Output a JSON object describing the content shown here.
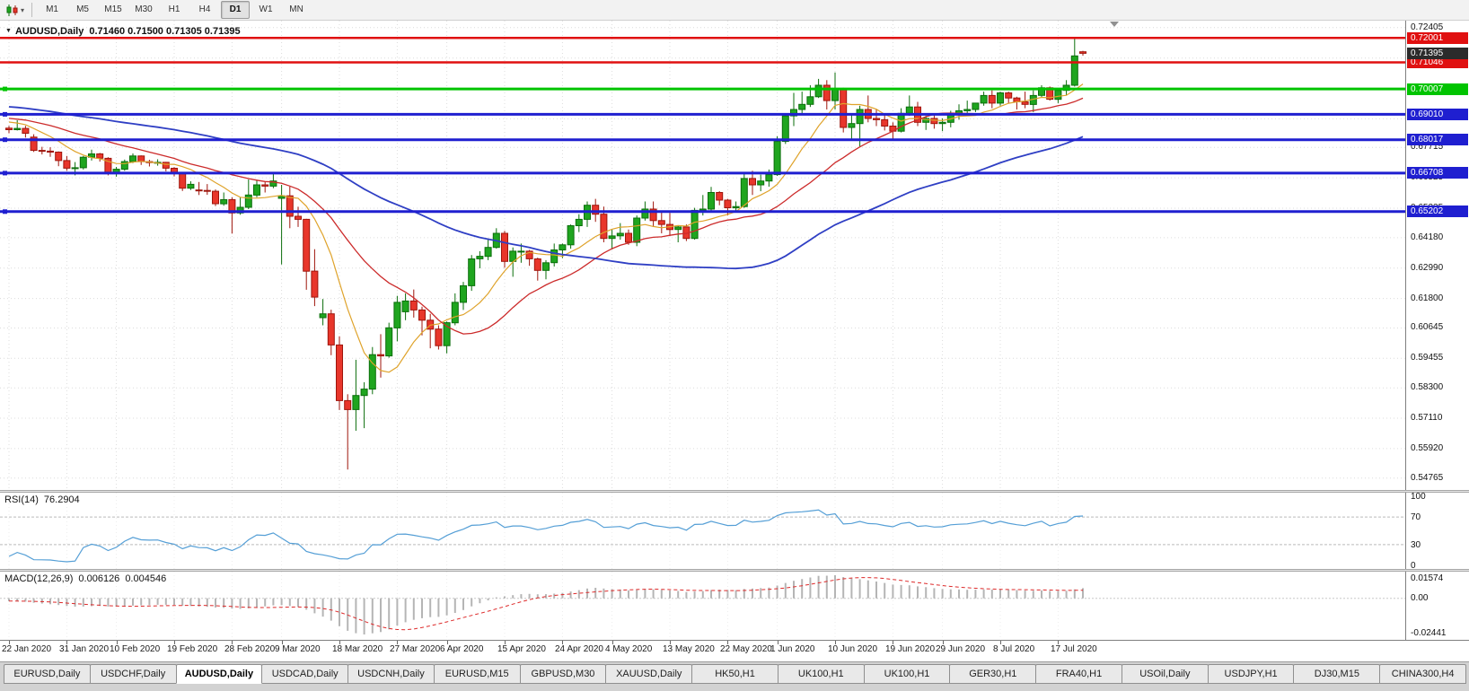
{
  "toolbar": {
    "chart_tool_caret": "▾",
    "timeframes": [
      {
        "label": "M1",
        "active": false
      },
      {
        "label": "M5",
        "active": false
      },
      {
        "label": "M15",
        "active": false
      },
      {
        "label": "M30",
        "active": false
      },
      {
        "label": "H1",
        "active": false
      },
      {
        "label": "H4",
        "active": false
      },
      {
        "label": "D1",
        "active": true
      },
      {
        "label": "W1",
        "active": false
      },
      {
        "label": "MN",
        "active": false
      }
    ]
  },
  "chart": {
    "caret": "▼",
    "symbol_period": "AUDUSD,Daily",
    "ohlc_text": "0.71460 0.71500 0.71305 0.71395"
  },
  "chart_data": {
    "type": "candlestick",
    "symbol": "AUDUSD",
    "period": "Daily",
    "current_bar": {
      "open": "0.71460",
      "high": "0.71500",
      "low": "0.71305",
      "close": "0.71395"
    },
    "current_price": 0.71395,
    "y_axis_range": {
      "top": 0.7268,
      "bottom": 0.543
    },
    "y_axis_ticks": [
      0.72405,
      0.71215,
      0.70025,
      0.68835,
      0.67715,
      0.66525,
      0.65335,
      0.6418,
      0.6299,
      0.618,
      0.60645,
      0.59455,
      0.583,
      0.5711,
      0.5592,
      0.54765
    ],
    "x_axis_labels": [
      {
        "label": "22 Jan 2020",
        "bar_index": 0
      },
      {
        "label": "31 Jan 2020",
        "bar_index": 7
      },
      {
        "label": "10 Feb 2020",
        "bar_index": 13
      },
      {
        "label": "19 Feb 2020",
        "bar_index": 20
      },
      {
        "label": "28 Feb 2020",
        "bar_index": 27
      },
      {
        "label": "9 Mar 2020",
        "bar_index": 33
      },
      {
        "label": "18 Mar 2020",
        "bar_index": 40
      },
      {
        "label": "27 Mar 2020",
        "bar_index": 47
      },
      {
        "label": "6 Apr 2020",
        "bar_index": 53
      },
      {
        "label": "15 Apr 2020",
        "bar_index": 60
      },
      {
        "label": "24 Apr 2020",
        "bar_index": 67
      },
      {
        "label": "4 May 2020",
        "bar_index": 73
      },
      {
        "label": "13 May 2020",
        "bar_index": 80
      },
      {
        "label": "22 May 2020",
        "bar_index": 87
      },
      {
        "label": "1 Jun 2020",
        "bar_index": 93
      },
      {
        "label": "10 Jun 2020",
        "bar_index": 100
      },
      {
        "label": "19 Jun 2020",
        "bar_index": 107
      },
      {
        "label": "29 Jun 2020",
        "bar_index": 113
      },
      {
        "label": "8 Jul 2020",
        "bar_index": 120
      },
      {
        "label": "17 Jul 2020",
        "bar_index": 127
      }
    ],
    "horizontal_lines": [
      {
        "price": 0.72001,
        "color_key": "resistance_red",
        "width": 2.5,
        "handle": false
      },
      {
        "price": 0.71046,
        "color_key": "resistance_red",
        "width": 2.5,
        "handle": false
      },
      {
        "price": 0.70007,
        "color_key": "support_green",
        "width": 3,
        "handle": true
      },
      {
        "price": 0.6901,
        "color_key": "support_blue",
        "width": 3,
        "handle": true
      },
      {
        "price": 0.68017,
        "color_key": "support_blue",
        "width": 3,
        "handle": true
      },
      {
        "price": 0.66708,
        "color_key": "support_blue",
        "width": 3,
        "handle": true
      },
      {
        "price": 0.65202,
        "color_key": "support_blue",
        "width": 3,
        "handle": true
      }
    ],
    "overlays": [
      {
        "name": "ma-fast-line",
        "type": "sma",
        "period": 8,
        "color_key": "ma_fast",
        "width": 1.2
      },
      {
        "name": "ma-mid-line",
        "type": "sma",
        "period": 20,
        "color_key": "ma_mid",
        "width": 1.3
      },
      {
        "name": "ma-slow-line",
        "type": "sma",
        "period": 55,
        "color_key": "ma_slow",
        "width": 1.8
      }
    ],
    "candles": [
      [
        0.6847,
        0.6856,
        0.6827,
        0.6841
      ],
      [
        0.6841,
        0.6878,
        0.6838,
        0.6846
      ],
      [
        0.6846,
        0.6856,
        0.681,
        0.6827
      ],
      [
        0.6812,
        0.6823,
        0.6754,
        0.676
      ],
      [
        0.676,
        0.6774,
        0.6744,
        0.6757
      ],
      [
        0.6757,
        0.6772,
        0.6735,
        0.6753
      ],
      [
        0.6753,
        0.6756,
        0.6698,
        0.672
      ],
      [
        0.672,
        0.6738,
        0.668,
        0.669
      ],
      [
        0.669,
        0.6714,
        0.6662,
        0.6692
      ],
      [
        0.6692,
        0.6738,
        0.6685,
        0.6733
      ],
      [
        0.6733,
        0.6763,
        0.672,
        0.6746
      ],
      [
        0.6746,
        0.675,
        0.6716,
        0.6729
      ],
      [
        0.6729,
        0.6733,
        0.6662,
        0.6672
      ],
      [
        0.6672,
        0.6695,
        0.6657,
        0.6686
      ],
      [
        0.6686,
        0.6724,
        0.668,
        0.6716
      ],
      [
        0.6716,
        0.6748,
        0.671,
        0.6738
      ],
      [
        0.6738,
        0.674,
        0.6703,
        0.6716
      ],
      [
        0.6716,
        0.6723,
        0.6697,
        0.6712
      ],
      [
        0.6712,
        0.6725,
        0.67,
        0.6713
      ],
      [
        0.6713,
        0.6715,
        0.6678,
        0.669
      ],
      [
        0.669,
        0.6694,
        0.6658,
        0.6672
      ],
      [
        0.6672,
        0.6675,
        0.6601,
        0.6612
      ],
      [
        0.6612,
        0.6639,
        0.6605,
        0.6627
      ],
      [
        0.6605,
        0.6636,
        0.6585,
        0.6603
      ],
      [
        0.6603,
        0.6628,
        0.6586,
        0.66
      ],
      [
        0.66,
        0.6607,
        0.6542,
        0.6551
      ],
      [
        0.6551,
        0.6595,
        0.6543,
        0.6567
      ],
      [
        0.6567,
        0.6576,
        0.6434,
        0.6515
      ],
      [
        0.6515,
        0.6576,
        0.6508,
        0.6537
      ],
      [
        0.6537,
        0.6646,
        0.653,
        0.6585
      ],
      [
        0.6585,
        0.6645,
        0.6576,
        0.6625
      ],
      [
        0.6625,
        0.6639,
        0.6595,
        0.662
      ],
      [
        0.662,
        0.6668,
        0.6612,
        0.664
      ],
      [
        0.6572,
        0.6625,
        0.6313,
        0.6582
      ],
      [
        0.6582,
        0.6618,
        0.6455,
        0.6502
      ],
      [
        0.6502,
        0.6539,
        0.646,
        0.649
      ],
      [
        0.649,
        0.6492,
        0.6214,
        0.6287
      ],
      [
        0.6287,
        0.6373,
        0.615,
        0.6185
      ],
      [
        0.6105,
        0.6178,
        0.6075,
        0.612
      ],
      [
        0.612,
        0.6136,
        0.5958,
        0.5998
      ],
      [
        0.5998,
        0.6032,
        0.5743,
        0.578
      ],
      [
        0.578,
        0.5805,
        0.551,
        0.5745
      ],
      [
        0.5745,
        0.594,
        0.5662,
        0.58
      ],
      [
        0.58,
        0.5852,
        0.5672,
        0.5825
      ],
      [
        0.5825,
        0.599,
        0.5805,
        0.596
      ],
      [
        0.596,
        0.604,
        0.587,
        0.5955
      ],
      [
        0.5955,
        0.6085,
        0.5948,
        0.6065
      ],
      [
        0.6065,
        0.619,
        0.6012,
        0.6165
      ],
      [
        0.6128,
        0.62,
        0.6095,
        0.617
      ],
      [
        0.617,
        0.6215,
        0.6105,
        0.6135
      ],
      [
        0.6135,
        0.6148,
        0.6035,
        0.6095
      ],
      [
        0.6095,
        0.612,
        0.5985,
        0.606
      ],
      [
        0.606,
        0.6075,
        0.598,
        0.5995
      ],
      [
        0.5995,
        0.609,
        0.5965,
        0.6085
      ],
      [
        0.6085,
        0.62,
        0.6075,
        0.6165
      ],
      [
        0.6165,
        0.6245,
        0.6135,
        0.623
      ],
      [
        0.623,
        0.635,
        0.621,
        0.6335
      ],
      [
        0.6335,
        0.6365,
        0.6298,
        0.6345
      ],
      [
        0.6345,
        0.6415,
        0.633,
        0.638
      ],
      [
        0.638,
        0.6455,
        0.6375,
        0.6435
      ],
      [
        0.6435,
        0.6445,
        0.63,
        0.6325
      ],
      [
        0.6325,
        0.638,
        0.6265,
        0.6365
      ],
      [
        0.6365,
        0.6395,
        0.632,
        0.6365
      ],
      [
        0.6365,
        0.637,
        0.6308,
        0.6335
      ],
      [
        0.6335,
        0.634,
        0.625,
        0.629
      ],
      [
        0.629,
        0.633,
        0.6255,
        0.632
      ],
      [
        0.632,
        0.6395,
        0.6305,
        0.637
      ],
      [
        0.637,
        0.6395,
        0.6338,
        0.639
      ],
      [
        0.639,
        0.647,
        0.6375,
        0.6465
      ],
      [
        0.6465,
        0.651,
        0.644,
        0.649
      ],
      [
        0.649,
        0.656,
        0.646,
        0.6545
      ],
      [
        0.6545,
        0.657,
        0.648,
        0.651
      ],
      [
        0.651,
        0.654,
        0.64,
        0.6415
      ],
      [
        0.6415,
        0.645,
        0.6372,
        0.6425
      ],
      [
        0.6425,
        0.6475,
        0.641,
        0.6435
      ],
      [
        0.6435,
        0.645,
        0.639,
        0.64
      ],
      [
        0.64,
        0.6505,
        0.6385,
        0.6495
      ],
      [
        0.6495,
        0.656,
        0.6485,
        0.653
      ],
      [
        0.653,
        0.656,
        0.646,
        0.6485
      ],
      [
        0.6485,
        0.652,
        0.6435,
        0.647
      ],
      [
        0.647,
        0.6515,
        0.6425,
        0.645
      ],
      [
        0.645,
        0.6465,
        0.64,
        0.646
      ],
      [
        0.646,
        0.647,
        0.6405,
        0.6415
      ],
      [
        0.6415,
        0.6535,
        0.641,
        0.6525
      ],
      [
        0.6525,
        0.6585,
        0.6505,
        0.653
      ],
      [
        0.653,
        0.6617,
        0.652,
        0.6595
      ],
      [
        0.6595,
        0.66,
        0.6545,
        0.6565
      ],
      [
        0.6565,
        0.657,
        0.6505,
        0.6535
      ],
      [
        0.6535,
        0.656,
        0.652,
        0.654
      ],
      [
        0.654,
        0.6675,
        0.6535,
        0.665
      ],
      [
        0.665,
        0.668,
        0.6585,
        0.6625
      ],
      [
        0.6625,
        0.6665,
        0.66,
        0.664
      ],
      [
        0.664,
        0.6685,
        0.6618,
        0.6665
      ],
      [
        0.6665,
        0.6815,
        0.666,
        0.6795
      ],
      [
        0.6795,
        0.69,
        0.6785,
        0.6895
      ],
      [
        0.6895,
        0.6985,
        0.6855,
        0.692
      ],
      [
        0.692,
        0.699,
        0.69,
        0.694
      ],
      [
        0.694,
        0.7015,
        0.693,
        0.697
      ],
      [
        0.697,
        0.704,
        0.6965,
        0.7015
      ],
      [
        0.7015,
        0.7035,
        0.692,
        0.6955
      ],
      [
        0.6955,
        0.7065,
        0.692,
        0.7
      ],
      [
        0.7,
        0.7005,
        0.683,
        0.685
      ],
      [
        0.685,
        0.6905,
        0.68,
        0.6865
      ],
      [
        0.6865,
        0.6935,
        0.6775,
        0.692
      ],
      [
        0.692,
        0.6975,
        0.687,
        0.6885
      ],
      [
        0.6885,
        0.692,
        0.6855,
        0.688
      ],
      [
        0.688,
        0.69,
        0.6838,
        0.6855
      ],
      [
        0.6855,
        0.687,
        0.6805,
        0.6835
      ],
      [
        0.6835,
        0.6925,
        0.683,
        0.6905
      ],
      [
        0.6905,
        0.6975,
        0.6895,
        0.693
      ],
      [
        0.693,
        0.695,
        0.6855,
        0.687
      ],
      [
        0.687,
        0.6895,
        0.684,
        0.6885
      ],
      [
        0.6885,
        0.69,
        0.6845,
        0.6865
      ],
      [
        0.6865,
        0.6885,
        0.6835,
        0.687
      ],
      [
        0.687,
        0.6915,
        0.685,
        0.6905
      ],
      [
        0.6905,
        0.694,
        0.688,
        0.6915
      ],
      [
        0.6915,
        0.6955,
        0.69,
        0.692
      ],
      [
        0.692,
        0.6945,
        0.691,
        0.6945
      ],
      [
        0.6945,
        0.699,
        0.6935,
        0.6975
      ],
      [
        0.6975,
        0.6995,
        0.6925,
        0.6945
      ],
      [
        0.6945,
        0.699,
        0.6935,
        0.6985
      ],
      [
        0.6985,
        0.699,
        0.6945,
        0.6965
      ],
      [
        0.6965,
        0.697,
        0.692,
        0.695
      ],
      [
        0.695,
        0.699,
        0.6925,
        0.694
      ],
      [
        0.694,
        0.6995,
        0.691,
        0.6975
      ],
      [
        0.6975,
        0.7015,
        0.6968,
        0.7005
      ],
      [
        0.7005,
        0.701,
        0.6955,
        0.696
      ],
      [
        0.696,
        0.7,
        0.6945,
        0.6995
      ],
      [
        0.6995,
        0.7035,
        0.6975,
        0.7015
      ],
      [
        0.7015,
        0.72,
        0.701,
        0.713
      ],
      [
        0.7146,
        0.715,
        0.7131,
        0.714
      ]
    ]
  },
  "rsi": {
    "name": "RSI(14)",
    "value": "76.2904",
    "period": 14,
    "levels": [
      70,
      30
    ],
    "axis_labels": [
      {
        "value": 100,
        "label": "100"
      },
      {
        "value": 70,
        "label": "70"
      },
      {
        "value": 30,
        "label": "30"
      },
      {
        "value": 0,
        "label": "0"
      }
    ]
  },
  "macd": {
    "name": "MACD(12,26,9)",
    "main_value": "0.006126",
    "signal_value": "0.004546",
    "fast": 12,
    "slow": 26,
    "signal": 9,
    "axis_top_label": "0.01574",
    "axis_zero_label": "0.00",
    "axis_bottom_label": "-0.02441"
  },
  "tabs": [
    {
      "label": "EURUSD,Daily",
      "active": false
    },
    {
      "label": "USDCHF,Daily",
      "active": false
    },
    {
      "label": "AUDUSD,Daily",
      "active": true
    },
    {
      "label": "USDCAD,Daily",
      "active": false
    },
    {
      "label": "USDCNH,Daily",
      "active": false
    },
    {
      "label": "EURUSD,M15",
      "active": false
    },
    {
      "label": "GBPUSD,M30",
      "active": false
    },
    {
      "label": "XAUUSD,Daily",
      "active": false
    },
    {
      "label": "HK50,H1",
      "active": false
    },
    {
      "label": "UK100,H1",
      "active": false
    },
    {
      "label": "UK100,H1",
      "active": false
    },
    {
      "label": "GER30,H1",
      "active": false
    },
    {
      "label": "FRA40,H1",
      "active": false
    },
    {
      "label": "USOil,Daily",
      "active": false
    },
    {
      "label": "USDJPY,H1",
      "active": false
    },
    {
      "label": "DJ30,M15",
      "active": false
    },
    {
      "label": "CHINA300,H4",
      "active": false
    }
  ],
  "colors": {
    "bull": "#1fa51f",
    "bull_border": "#0b6e0b",
    "bear": "#e8362b",
    "bear_border": "#9e150c",
    "grid": "#dcdcdc",
    "sub_grid": "#ededed",
    "resistance_red": "#e01010",
    "support_green": "#00c400",
    "support_blue": "#1f1fd0",
    "current_badge": "#2b2b2b",
    "ma_fast": "#dfa32b",
    "ma_mid": "#cc2b2b",
    "ma_slow": "#2f3fc4",
    "rsi_line": "#559fd6",
    "rsi_level": "#bbbbbb",
    "macd_hist": "#b5b5b5",
    "macd_signal": "#dd2a2a",
    "shift_marker": "#909090"
  }
}
